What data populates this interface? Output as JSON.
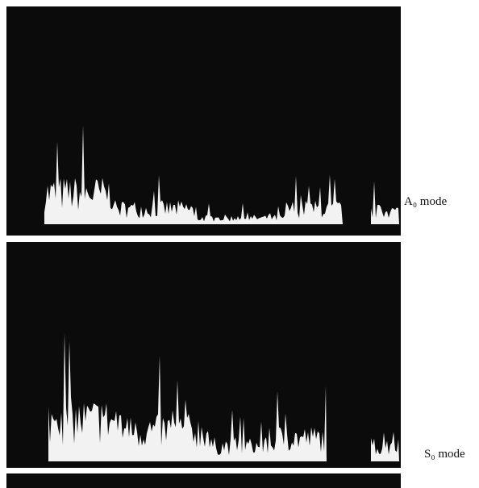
{
  "panels": [
    {
      "label": "A₀ mode"
    },
    {
      "label": "S₀ mode"
    }
  ]
}
